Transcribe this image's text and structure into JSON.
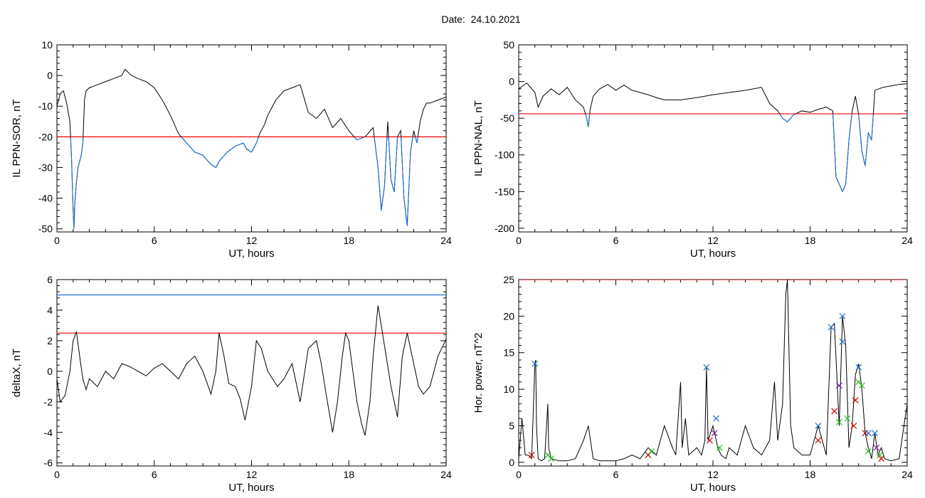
{
  "page": {
    "title_label": "Date:",
    "title_value": "24.10.2021"
  },
  "colors": {
    "axis": "#000000",
    "trace": "#000000",
    "threshold_red": "#ee0000",
    "threshold_blue": "#1f6fd0",
    "marker_blue": "#1f6fd0",
    "marker_green": "#22bb22",
    "marker_red": "#cc0000",
    "marker_purple": "#7a1fa0"
  },
  "chart_data": [
    {
      "id": "ppn-sor",
      "type": "line",
      "ylabel": "IL PPN-SOR, nT",
      "xlabel": "UT, hours",
      "xlim": [
        0,
        24
      ],
      "ylim": [
        -51,
        10
      ],
      "xticks": [
        0,
        6,
        12,
        18,
        24
      ],
      "yticks": [
        -50,
        -40,
        -30,
        -20,
        -10,
        0,
        10
      ],
      "threshold": {
        "y": -20,
        "color": "red"
      },
      "below_threshold_color": "blue",
      "series": [
        {
          "x": [
            0,
            0.2,
            0.4,
            0.6,
            0.8,
            0.9,
            1.0,
            1.05,
            1.1,
            1.2,
            1.3,
            1.4,
            1.5,
            1.6,
            1.7,
            1.8,
            2.0,
            2.5,
            3.0,
            3.5,
            4.0,
            4.2,
            4.4,
            4.6,
            5.0,
            5.5,
            6.0,
            6.5,
            7.0,
            7.5,
            8.0,
            8.5,
            9.0,
            9.5,
            9.8,
            10.0,
            10.5,
            11.0,
            11.5,
            11.7,
            12.0,
            12.3,
            12.5,
            12.8,
            13.0,
            13.5,
            14.0,
            14.5,
            15.0,
            15.5,
            16.0,
            16.5,
            17.0,
            17.5,
            18.0,
            18.5,
            19.0,
            19.5,
            19.8,
            20.0,
            20.2,
            20.4,
            20.6,
            20.8,
            21.0,
            21.2,
            21.4,
            21.6,
            21.8,
            22.0,
            22.2,
            22.4,
            22.6,
            22.8,
            23.0,
            23.5,
            24.0
          ],
          "y": [
            -10,
            -6,
            -5,
            -9,
            -15,
            -27,
            -44,
            -50,
            -42,
            -35,
            -30,
            -28,
            -26,
            -22,
            -8,
            -5,
            -4,
            -3,
            -2,
            -1,
            0,
            2,
            1,
            0,
            -1,
            -2,
            -4,
            -8,
            -13,
            -19,
            -22,
            -25,
            -26,
            -29,
            -30,
            -28,
            -25,
            -23,
            -22,
            -24,
            -25,
            -22,
            -19,
            -16,
            -13,
            -8,
            -5,
            -4,
            -3,
            -12,
            -14,
            -11,
            -17,
            -14,
            -18,
            -21,
            -20,
            -17,
            -30,
            -44,
            -36,
            -15,
            -34,
            -38,
            -20,
            -18,
            -40,
            -49,
            -25,
            -18,
            -22,
            -15,
            -11,
            -9,
            -9,
            -8,
            -7
          ]
        }
      ]
    },
    {
      "id": "ppn-nal",
      "type": "line",
      "ylabel": "IL PPN-NAL, nT",
      "xlabel": "UT, hours",
      "xlim": [
        0,
        24
      ],
      "ylim": [
        -205,
        50
      ],
      "xticks": [
        0,
        6,
        12,
        18,
        24
      ],
      "yticks": [
        -200,
        -150,
        -100,
        -50,
        0,
        50
      ],
      "threshold": {
        "y": -44,
        "color": "red"
      },
      "below_threshold_color": "blue",
      "series": [
        {
          "x": [
            0,
            0.5,
            1.0,
            1.2,
            1.5,
            2.0,
            2.5,
            3.0,
            3.5,
            4.0,
            4.2,
            4.3,
            4.4,
            4.6,
            5.0,
            5.5,
            6.0,
            6.5,
            7.0,
            7.5,
            8.0,
            8.5,
            9.0,
            10.0,
            11.0,
            12.0,
            13.0,
            14.0,
            15.0,
            15.5,
            16.0,
            16.3,
            16.6,
            17.0,
            17.5,
            18.0,
            18.5,
            19.0,
            19.4,
            19.6,
            19.8,
            20.0,
            20.2,
            20.4,
            20.6,
            20.8,
            21.0,
            21.2,
            21.4,
            21.6,
            21.8,
            22.0,
            22.5,
            23.0,
            23.5,
            24.0
          ],
          "y": [
            -10,
            -2,
            -15,
            -35,
            -20,
            -10,
            -18,
            -8,
            -25,
            -35,
            -50,
            -62,
            -40,
            -20,
            -10,
            -4,
            -12,
            -5,
            -12,
            -15,
            -18,
            -22,
            -25,
            -25,
            -22,
            -18,
            -15,
            -12,
            -8,
            -30,
            -40,
            -50,
            -55,
            -45,
            -40,
            -42,
            -38,
            -35,
            -40,
            -130,
            -140,
            -150,
            -140,
            -80,
            -40,
            -20,
            -45,
            -95,
            -115,
            -70,
            -80,
            -12,
            -8,
            -6,
            -4,
            -3
          ]
        }
      ]
    },
    {
      "id": "deltax",
      "type": "line",
      "ylabel": "deltaX, nT",
      "xlabel": "UT, hours",
      "xlim": [
        0,
        24
      ],
      "ylim": [
        -6.2,
        6
      ],
      "xticks": [
        0,
        6,
        12,
        18,
        24
      ],
      "yticks": [
        -6,
        -4,
        -2,
        0,
        2,
        4,
        6
      ],
      "thresholds": [
        {
          "y": 5.0,
          "color": "blue"
        },
        {
          "y": 2.5,
          "color": "red"
        }
      ],
      "series": [
        {
          "x": [
            0,
            0.2,
            0.5,
            0.8,
            1.0,
            1.2,
            1.4,
            1.6,
            1.8,
            2.0,
            2.5,
            3.0,
            3.5,
            4.0,
            4.5,
            5.0,
            5.5,
            6.0,
            6.5,
            7.0,
            7.5,
            8.0,
            8.5,
            9.0,
            9.5,
            9.8,
            10.0,
            10.3,
            10.6,
            11.0,
            11.3,
            11.6,
            12.0,
            12.3,
            12.6,
            13.0,
            13.3,
            13.6,
            14.0,
            14.5,
            15.0,
            15.5,
            16.0,
            16.3,
            16.6,
            17.0,
            17.3,
            17.6,
            17.8,
            18.0,
            18.5,
            18.8,
            19.0,
            19.3,
            19.5,
            19.8,
            20.0,
            20.3,
            20.6,
            21.0,
            21.3,
            21.6,
            22.0,
            22.3,
            22.6,
            23.0,
            23.5,
            24.0
          ],
          "y": [
            -0.5,
            -2.0,
            -1.6,
            0.0,
            2.0,
            2.6,
            1.0,
            -0.5,
            -1.2,
            -0.5,
            -1.0,
            0.0,
            -0.5,
            0.5,
            0.3,
            0.0,
            -0.3,
            0.2,
            0.5,
            0.0,
            -0.5,
            0.5,
            1.0,
            0.0,
            -1.5,
            0.0,
            2.5,
            1.0,
            -0.8,
            -1.0,
            -1.8,
            -3.2,
            -1.0,
            2.0,
            1.5,
            0.0,
            -0.5,
            -1.0,
            -0.5,
            0.5,
            -2.0,
            1.5,
            2.0,
            0.5,
            -1.5,
            -4.0,
            -2.0,
            1.0,
            2.5,
            2.0,
            -2.0,
            -3.5,
            -4.2,
            -2.0,
            1.0,
            4.3,
            3.0,
            1.0,
            -1.0,
            -3.0,
            1.0,
            2.5,
            0.5,
            -1.0,
            -1.5,
            -1.0,
            1.0,
            2.1
          ]
        }
      ]
    },
    {
      "id": "hor-power",
      "type": "line",
      "ylabel": "Hor. power, nT^2",
      "xlabel": "UT, hours",
      "xlim": [
        0,
        24
      ],
      "ylim": [
        -0.5,
        25
      ],
      "xticks": [
        0,
        6,
        12,
        18,
        24
      ],
      "yticks": [
        0,
        5,
        10,
        15,
        20,
        25
      ],
      "threshold": {
        "y": 25,
        "color": "red"
      },
      "series": [
        {
          "x": [
            0,
            0.2,
            0.4,
            0.6,
            0.8,
            1.0,
            1.05,
            1.1,
            1.2,
            1.4,
            1.6,
            1.8,
            1.85,
            2.0,
            2.5,
            3.0,
            3.5,
            4.0,
            4.3,
            4.6,
            5.0,
            5.5,
            6.0,
            6.5,
            7.0,
            7.5,
            8.0,
            8.5,
            9.0,
            9.5,
            9.7,
            10.0,
            10.1,
            10.3,
            10.5,
            11.0,
            11.3,
            11.5,
            11.6,
            11.7,
            12.0,
            12.3,
            12.5,
            12.8,
            13.0,
            13.5,
            14.0,
            14.5,
            15.0,
            15.5,
            15.8,
            16.0,
            16.3,
            16.5,
            16.6,
            16.8,
            17.0,
            17.5,
            18.0,
            18.5,
            19.0,
            19.3,
            19.5,
            19.8,
            20.0,
            20.2,
            20.4,
            20.6,
            20.8,
            21.0,
            21.2,
            21.4,
            21.6,
            21.8,
            22.0,
            22.2,
            22.4,
            22.6,
            23.0,
            23.5,
            24.0
          ],
          "y": [
            0.5,
            6.0,
            1.0,
            1.0,
            0.5,
            13.5,
            14.0,
            5.0,
            0.5,
            0.2,
            0.5,
            8.0,
            2.0,
            0.5,
            0.2,
            0.2,
            0.5,
            3.0,
            5.0,
            0.5,
            0.2,
            0.2,
            0.2,
            0.5,
            1.0,
            0.5,
            2.0,
            1.0,
            5.0,
            2.0,
            1.0,
            11.0,
            2.0,
            6.0,
            1.0,
            2.0,
            1.0,
            3.0,
            13.0,
            3.0,
            5.0,
            2.0,
            1.0,
            0.5,
            2.0,
            1.0,
            5.0,
            2.0,
            1.0,
            3.0,
            11.0,
            3.0,
            8.0,
            23.0,
            25.0,
            5.0,
            2.0,
            1.0,
            1.0,
            5.0,
            1.0,
            18.5,
            19.0,
            5.0,
            20.0,
            16.0,
            2.0,
            5.0,
            12.0,
            13.5,
            10.0,
            4.0,
            2.0,
            0.5,
            4.0,
            1.0,
            2.0,
            0.5,
            0.2,
            0.5,
            8.0
          ]
        }
      ],
      "markers": [
        {
          "x": 1.0,
          "y": 13.5,
          "color": "blue"
        },
        {
          "x": 0.8,
          "y": 1.0,
          "color": "red"
        },
        {
          "x": 11.6,
          "y": 13.0,
          "color": "blue"
        },
        {
          "x": 12.2,
          "y": 6.0,
          "color": "blue"
        },
        {
          "x": 12.1,
          "y": 4.0,
          "color": "purple"
        },
        {
          "x": 11.8,
          "y": 3.0,
          "color": "red"
        },
        {
          "x": 12.4,
          "y": 2.0,
          "color": "green"
        },
        {
          "x": 1.8,
          "y": 1.0,
          "color": "green"
        },
        {
          "x": 2.0,
          "y": 0.5,
          "color": "green"
        },
        {
          "x": 8.0,
          "y": 1.0,
          "color": "red"
        },
        {
          "x": 8.2,
          "y": 1.5,
          "color": "green"
        },
        {
          "x": 18.5,
          "y": 5.0,
          "color": "blue"
        },
        {
          "x": 18.5,
          "y": 3.0,
          "color": "red"
        },
        {
          "x": 19.3,
          "y": 18.5,
          "color": "blue"
        },
        {
          "x": 19.5,
          "y": 7.0,
          "color": "red"
        },
        {
          "x": 19.8,
          "y": 5.5,
          "color": "green"
        },
        {
          "x": 19.8,
          "y": 10.5,
          "color": "purple"
        },
        {
          "x": 20.0,
          "y": 20.0,
          "color": "blue"
        },
        {
          "x": 20.0,
          "y": 16.5,
          "color": "blue"
        },
        {
          "x": 20.3,
          "y": 6.0,
          "color": "green"
        },
        {
          "x": 20.7,
          "y": 5.0,
          "color": "red"
        },
        {
          "x": 21.0,
          "y": 13.0,
          "color": "blue"
        },
        {
          "x": 21.0,
          "y": 11.0,
          "color": "green"
        },
        {
          "x": 21.2,
          "y": 10.5,
          "color": "green"
        },
        {
          "x": 20.8,
          "y": 8.5,
          "color": "red"
        },
        {
          "x": 21.4,
          "y": 4.0,
          "color": "red"
        },
        {
          "x": 21.6,
          "y": 4.0,
          "color": "blue"
        },
        {
          "x": 21.6,
          "y": 1.5,
          "color": "green"
        },
        {
          "x": 22.0,
          "y": 4.0,
          "color": "blue"
        },
        {
          "x": 22.1,
          "y": 2.0,
          "color": "purple"
        },
        {
          "x": 22.3,
          "y": 1.0,
          "color": "green"
        },
        {
          "x": 22.4,
          "y": 0.5,
          "color": "red"
        }
      ]
    }
  ]
}
